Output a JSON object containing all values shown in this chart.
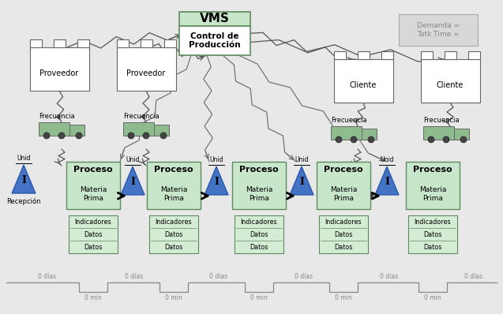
{
  "bg_color": "#e8e8e8",
  "factory_color": "#ffffff",
  "factory_border": "#666666",
  "proceso_fill": "#c8e6c9",
  "proceso_border": "#5d8a5e",
  "vms_fill": "#c8e6c9",
  "vms_border": "#5d8a5e",
  "demand_fill": "#d8d8d8",
  "demand_border": "#aaaaaa",
  "truck_fill": "#8fbc8f",
  "truck_dark": "#5a8a5a",
  "triangle_blue": "#4472c4",
  "triangle_light": "#7ba7d8",
  "indicator_fill": "#d4ebd4",
  "indicator_border": "#5d8a5e",
  "zigzag_color": "#555555",
  "timeline_color": "#888888",
  "push_stripe_dark": "#444444",
  "push_stripe_light": "#999999",
  "title": "VMS",
  "subtitle": "Control de\nProducción",
  "demand_text": "Demanda =\nTatk Time =",
  "prov1": "Proveedor",
  "prov2": "Proveedor",
  "cli1": "Cliente",
  "cli2": "Cliente",
  "proceso_title": "Proceso",
  "proceso_body": "Materia\nPrima",
  "recepcion": "Recepción",
  "frecuencia": "Frecuencia",
  "unid": "Unid",
  "indicadores": "Indicadores",
  "datos": "Datos",
  "dias": "0 días",
  "mins": "0 min"
}
